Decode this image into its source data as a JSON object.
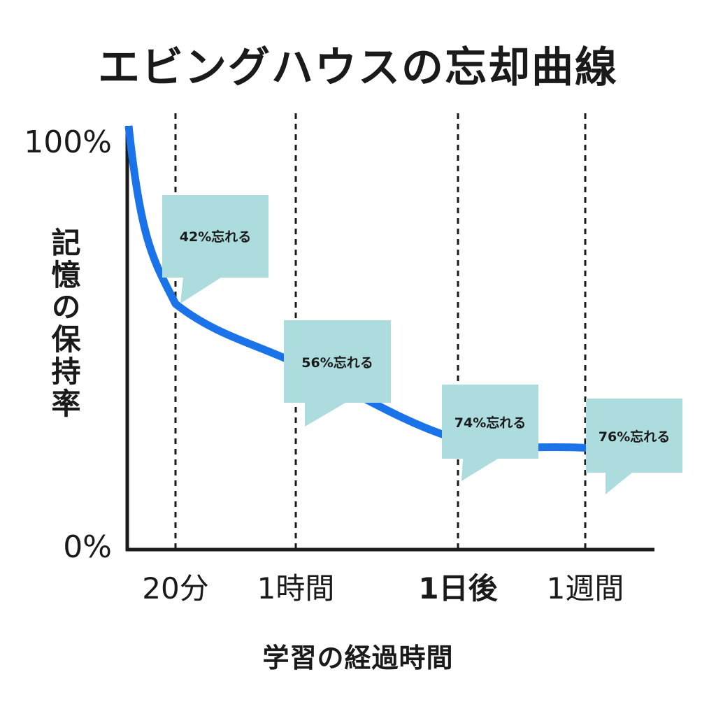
{
  "title": "エビングハウスの忘却曲線",
  "chart_data": {
    "type": "line",
    "title": "エビングハウスの忘却曲線",
    "xlabel": "学習の経過時間",
    "ylabel": "記憶の保持率",
    "yticks": [
      "100%",
      "0%"
    ],
    "ylim": [
      0,
      100
    ],
    "categories": [
      "20分",
      "1時間",
      "1日後",
      "1週間"
    ],
    "series": [
      {
        "values": [
          58,
          44,
          26,
          24
        ]
      }
    ],
    "annotations": [
      "42%忘れる",
      "56%忘れる",
      "74%忘れる",
      "76%忘れる"
    ],
    "grid": "vertical dashed lines at each time point",
    "colors": {
      "curve": "#1a73e8",
      "callout": "#acdcdd",
      "axis": "#1a1a1a"
    }
  }
}
